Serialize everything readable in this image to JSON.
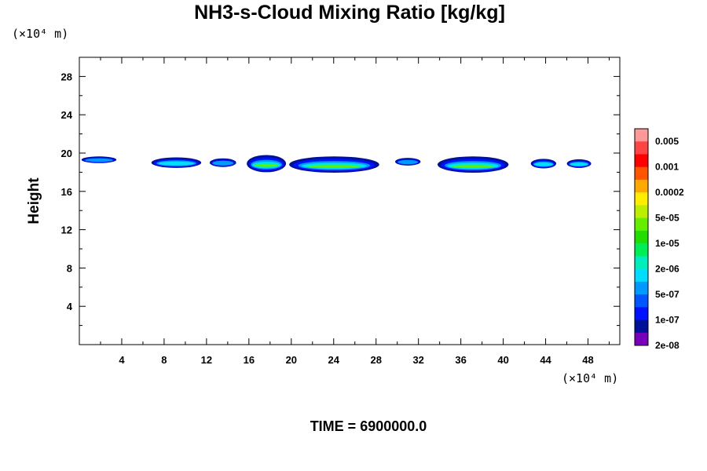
{
  "chart_data": {
    "type": "contour",
    "title": "NH3-s-Cloud Mixing Ratio [kg/kg]",
    "ylabel": "Height",
    "y_unit": "(×10⁴ m)",
    "x_unit": "(×10⁴ m)",
    "xlim": [
      0,
      51
    ],
    "ylim": [
      0,
      30
    ],
    "x_ticks": [
      4,
      8,
      12,
      16,
      20,
      24,
      28,
      32,
      36,
      40,
      44,
      48
    ],
    "x_tick_labels": [
      "4",
      "8",
      "12",
      "16",
      "20",
      "24",
      "28",
      "32",
      "36",
      "40",
      "44",
      "48"
    ],
    "y_ticks": [
      4,
      8,
      12,
      16,
      20,
      24,
      28
    ],
    "y_tick_labels": [
      "4",
      "8",
      "12",
      "16",
      "20",
      "24",
      "28"
    ],
    "colorbar": {
      "colors": [
        "#ff9999",
        "#ff4444",
        "#ff0000",
        "#ff5500",
        "#ffaa00",
        "#ffee00",
        "#bbee00",
        "#66ee00",
        "#22dd00",
        "#00ee55",
        "#00eebb",
        "#00ddff",
        "#0099ff",
        "#0055ff",
        "#0011ff",
        "#001199",
        "#7700bb"
      ],
      "labels": [
        "0.005",
        "0.001",
        "0.0002",
        "5e-05",
        "1e-05",
        "2e-06",
        "5e-07",
        "1e-07",
        "2e-08"
      ]
    },
    "cloud_blobs": [
      {
        "x0": 0.2,
        "x1": 3.5,
        "y": 19.3,
        "thickness": 0.7,
        "core": "#0099ff"
      },
      {
        "x0": 6.8,
        "x1": 11.5,
        "y": 19.0,
        "thickness": 1.1,
        "core": "#00ddff"
      },
      {
        "x0": 12.3,
        "x1": 14.8,
        "y": 19.0,
        "thickness": 0.9,
        "core": "#0099ff"
      },
      {
        "x0": 15.8,
        "x1": 19.5,
        "y": 18.9,
        "thickness": 1.8,
        "core": "#66ee00"
      },
      {
        "x0": 19.8,
        "x1": 28.3,
        "y": 18.8,
        "thickness": 1.7,
        "core": "#66ee00"
      },
      {
        "x0": 29.8,
        "x1": 32.2,
        "y": 19.1,
        "thickness": 0.8,
        "core": "#0099ff"
      },
      {
        "x0": 33.8,
        "x1": 40.5,
        "y": 18.8,
        "thickness": 1.7,
        "core": "#66ee00"
      },
      {
        "x0": 42.6,
        "x1": 45.0,
        "y": 18.9,
        "thickness": 1.0,
        "core": "#00ddff"
      },
      {
        "x0": 46.0,
        "x1": 48.3,
        "y": 18.9,
        "thickness": 0.9,
        "core": "#00ddff"
      }
    ]
  },
  "footer": {
    "time_label": "TIME = 6900000.0"
  }
}
